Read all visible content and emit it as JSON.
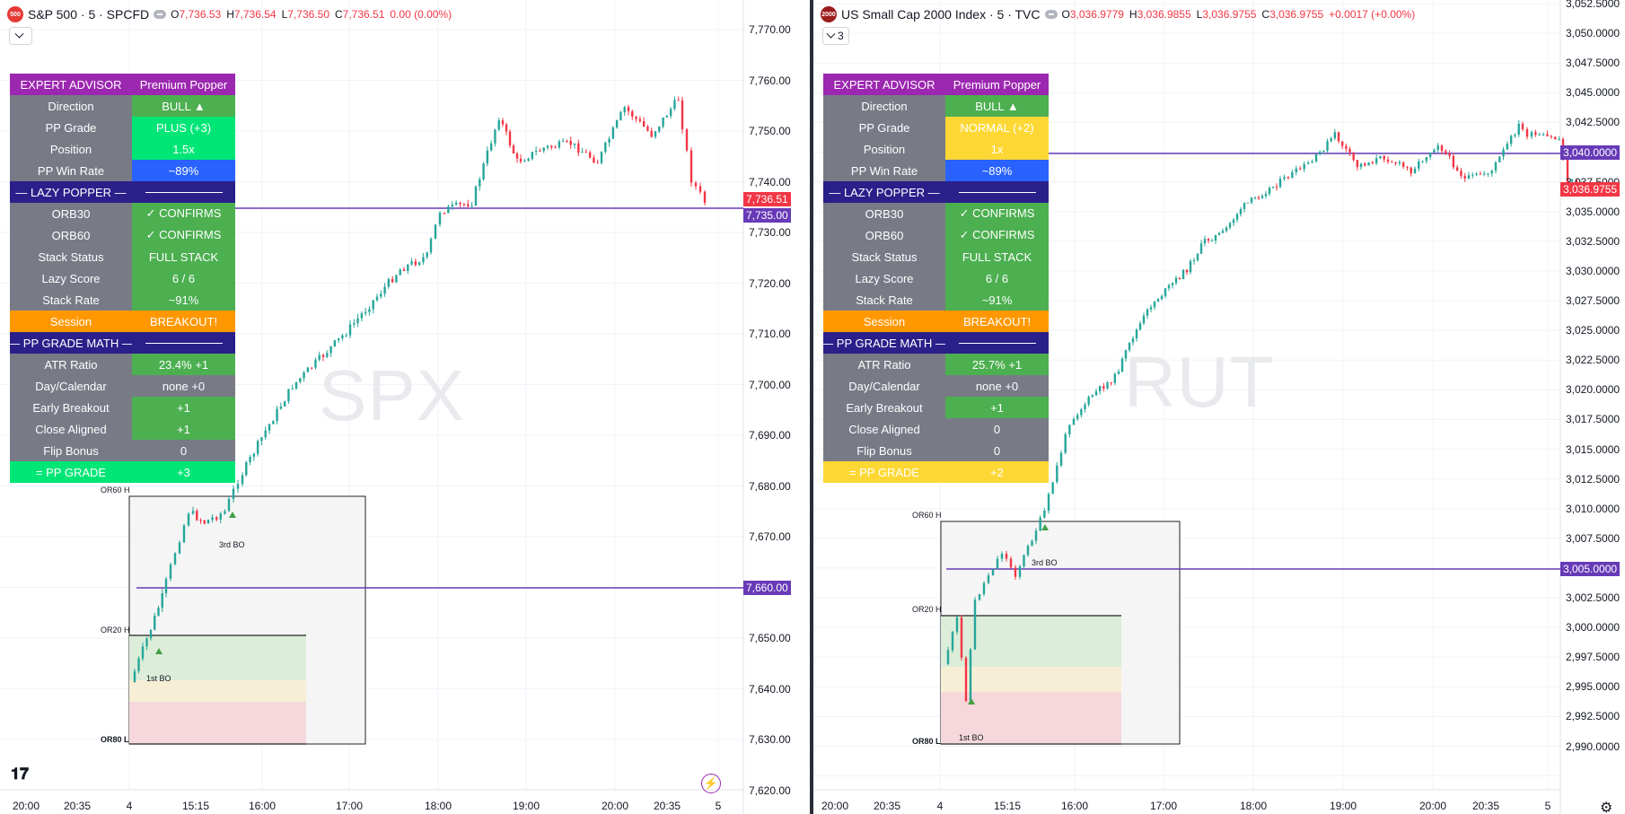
{
  "left": {
    "header": {
      "icon_text": "500",
      "title": "S&P 500 · 5 · SPCFD",
      "ohlc": [
        {
          "k": "O",
          "v": "7,736.53"
        },
        {
          "k": "H",
          "v": "7,736.54"
        },
        {
          "k": "L",
          "v": "7,736.50"
        },
        {
          "k": "C",
          "v": "7,736.51"
        },
        {
          "k": "",
          "v": "0.00 (0.00%)"
        }
      ]
    },
    "collapse_count": "",
    "watermark": "SPX",
    "table": [
      {
        "type": "hdr",
        "label": "EXPERT ADVISOR",
        "value": "Premium Popper"
      },
      {
        "type": "row",
        "label": "Direction",
        "value": "BULL ▲",
        "vclass": ""
      },
      {
        "type": "row",
        "label": "PP Grade",
        "value": "PLUS (+3)",
        "vclass": "lime"
      },
      {
        "type": "row",
        "label": "Position",
        "value": "1.5x",
        "vclass": "lime"
      },
      {
        "type": "row",
        "label": "PP Win Rate",
        "value": "~89%",
        "vclass": "blue"
      },
      {
        "type": "sect",
        "label": "— LAZY POPPER —",
        "value": ""
      },
      {
        "type": "row",
        "label": "ORB30",
        "value": "✓ CONFIRMS",
        "vclass": ""
      },
      {
        "type": "row",
        "label": "ORB60",
        "value": "✓ CONFIRMS",
        "vclass": ""
      },
      {
        "type": "row",
        "label": "Stack Status",
        "value": "FULL STACK",
        "vclass": ""
      },
      {
        "type": "row",
        "label": "Lazy Score",
        "value": "6 / 6",
        "vclass": ""
      },
      {
        "type": "row",
        "label": "Stack Rate",
        "value": "~91%",
        "vclass": ""
      },
      {
        "type": "session",
        "label": "Session",
        "value": "BREAKOUT!"
      },
      {
        "type": "sect",
        "label": "— PP GRADE MATH —",
        "value": ""
      },
      {
        "type": "row",
        "label": "ATR Ratio",
        "value": "23.4% +1",
        "vclass": ""
      },
      {
        "type": "row",
        "label": "Day/Calendar",
        "value": "none +0",
        "vclass": "gray"
      },
      {
        "type": "row",
        "label": "Early Breakout",
        "value": "+1",
        "vclass": ""
      },
      {
        "type": "row",
        "label": "Close Aligned",
        "value": "+1",
        "vclass": ""
      },
      {
        "type": "row",
        "label": "Flip Bonus",
        "value": "0",
        "vclass": "gray"
      },
      {
        "type": "total-lime",
        "label": "= PP GRADE",
        "value": "+3"
      }
    ],
    "price_ticks": [
      "7,770.00",
      "7,760.00",
      "7,750.00",
      "7,740.00",
      "7,730.00",
      "7,720.00",
      "7,710.00",
      "7,700.00",
      "7,690.00",
      "7,680.00",
      "7,670.00",
      "7,660.00",
      "7,650.00",
      "7,640.00",
      "7,630.00",
      "7,620.00"
    ],
    "price_tags": [
      {
        "text": "7,736.51",
        "color": "#f23645"
      },
      {
        "text": "7,735.00",
        "color": "#673ab7"
      },
      {
        "text": "7,660.00",
        "color": "#673ab7"
      }
    ],
    "time_labels": [
      "20:00",
      "20:35",
      "4",
      "15:15",
      "16:00",
      "17:00",
      "18:00",
      "19:00",
      "20:00",
      "20:35",
      "5"
    ],
    "annotations": {
      "or60": "OR60 H",
      "or20": "OR20 H",
      "or80": "OR80 L",
      "bo1": "1st BO",
      "bo3": "3rd BO"
    }
  },
  "right": {
    "header": {
      "icon_text": "2000",
      "title": "US Small Cap 2000 Index · 5 · TVC",
      "ohlc": [
        {
          "k": "O",
          "v": "3,036.9779"
        },
        {
          "k": "H",
          "v": "3,036.9855"
        },
        {
          "k": "L",
          "v": "3,036.9755"
        },
        {
          "k": "C",
          "v": "3,036.9755"
        },
        {
          "k": "",
          "v": "+0.0017 (+0.00%)"
        }
      ]
    },
    "collapse_count": "3",
    "watermark": "RUT",
    "table": [
      {
        "type": "hdr",
        "label": "EXPERT ADVISOR",
        "value": "Premium Popper"
      },
      {
        "type": "row",
        "label": "Direction",
        "value": "BULL ▲",
        "vclass": ""
      },
      {
        "type": "row",
        "label": "PP Grade",
        "value": "NORMAL (+2)",
        "vclass": "yellow"
      },
      {
        "type": "row",
        "label": "Position",
        "value": "1x",
        "vclass": "yellow"
      },
      {
        "type": "row",
        "label": "PP Win Rate",
        "value": "~89%",
        "vclass": "blue"
      },
      {
        "type": "sect",
        "label": "— LAZY POPPER —",
        "value": ""
      },
      {
        "type": "row",
        "label": "ORB30",
        "value": "✓ CONFIRMS",
        "vclass": ""
      },
      {
        "type": "row",
        "label": "ORB60",
        "value": "✓ CONFIRMS",
        "vclass": ""
      },
      {
        "type": "row",
        "label": "Stack Status",
        "value": "FULL STACK",
        "vclass": ""
      },
      {
        "type": "row",
        "label": "Lazy Score",
        "value": "6 / 6",
        "vclass": ""
      },
      {
        "type": "row",
        "label": "Stack Rate",
        "value": "~91%",
        "vclass": ""
      },
      {
        "type": "session",
        "label": "Session",
        "value": "BREAKOUT!"
      },
      {
        "type": "sect",
        "label": "— PP GRADE MATH —",
        "value": ""
      },
      {
        "type": "row",
        "label": "ATR Ratio",
        "value": "25.7% +1",
        "vclass": ""
      },
      {
        "type": "row",
        "label": "Day/Calendar",
        "value": "none +0",
        "vclass": "gray"
      },
      {
        "type": "row",
        "label": "Early Breakout",
        "value": "+1",
        "vclass": ""
      },
      {
        "type": "row",
        "label": "Close Aligned",
        "value": "0",
        "vclass": "gray"
      },
      {
        "type": "row",
        "label": "Flip Bonus",
        "value": "0",
        "vclass": "gray"
      },
      {
        "type": "total-yellow",
        "label": "= PP GRADE",
        "value": "+2"
      }
    ],
    "price_ticks": [
      "3,052.5000",
      "3,050.0000",
      "3,047.5000",
      "3,045.0000",
      "3,042.5000",
      "3,040.0000",
      "3,037.5000",
      "3,035.0000",
      "3,032.5000",
      "3,030.0000",
      "3,027.5000",
      "3,025.0000",
      "3,022.5000",
      "3,020.0000",
      "3,017.5000",
      "3,015.0000",
      "3,012.5000",
      "3,010.0000",
      "3,007.5000",
      "3,005.0000",
      "3,002.5000",
      "3,000.0000",
      "2,997.5000",
      "2,995.0000",
      "2,992.5000",
      "2,990.0000"
    ],
    "price_tags": [
      {
        "text": "3,040.0000",
        "color": "#673ab7"
      },
      {
        "text": "3,036.9755",
        "color": "#f23645"
      },
      {
        "text": "3,005.0000",
        "color": "#673ab7"
      }
    ],
    "time_labels": [
      "20:00",
      "20:35",
      "4",
      "15:15",
      "16:00",
      "17:00",
      "18:00",
      "19:00",
      "20:00",
      "20:35",
      "5"
    ],
    "annotations": {
      "or60": "OR60 H",
      "or20": "OR20 H",
      "or80": "OR80 L",
      "bo1": "1st BO",
      "bo3": "3rd BO"
    }
  },
  "colors": {
    "up": "#26a69a",
    "down": "#f23645",
    "level_line": "#673ab7",
    "grid": "#f0f3fa"
  },
  "icons": {
    "tradingview_logo": "tradingview-logo",
    "replay": "bolt-icon",
    "settings": "gear-icon"
  }
}
